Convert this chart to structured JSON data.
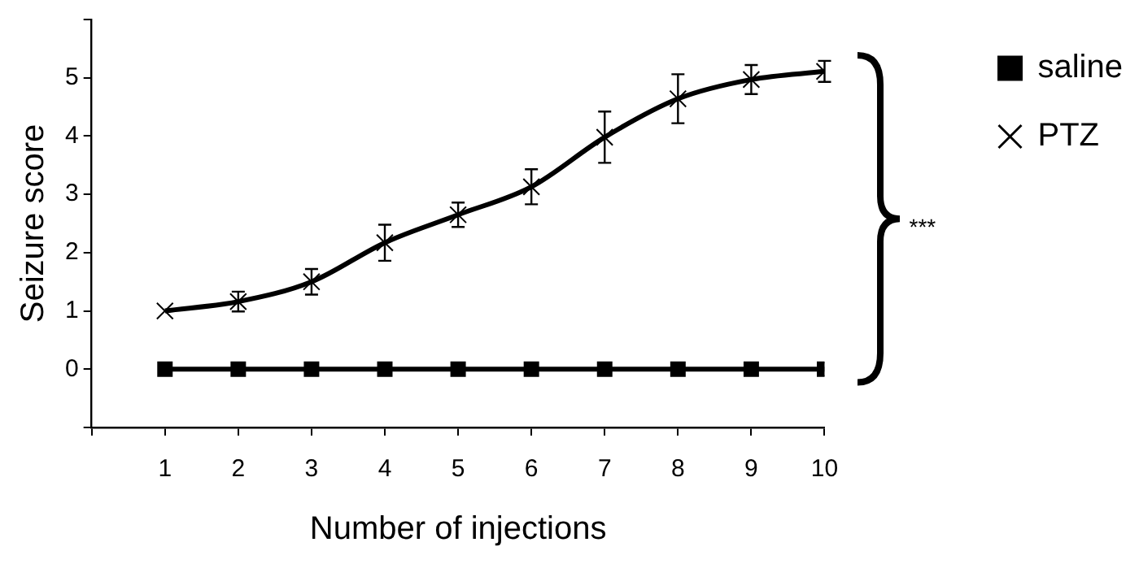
{
  "chart_data": {
    "type": "line",
    "xlabel": "Number of injections",
    "ylabel": "Seizure score",
    "x": [
      1,
      2,
      3,
      4,
      5,
      6,
      7,
      8,
      9,
      10
    ],
    "xlim": [
      0,
      10
    ],
    "xticks": [
      {
        "value": 0,
        "label": null
      },
      1,
      2,
      3,
      4,
      5,
      6,
      7,
      8,
      9,
      10
    ],
    "ylim": [
      -1,
      6
    ],
    "yticks": [
      {
        "value": -1,
        "label": null
      },
      0,
      1,
      2,
      3,
      4,
      5,
      {
        "value": 6,
        "label": null
      }
    ],
    "series": [
      {
        "name": "saline",
        "color": "#000000",
        "marker": "square",
        "values": [
          0,
          0,
          0,
          0,
          0,
          0,
          0,
          0,
          0,
          0
        ]
      },
      {
        "name": "PTZ",
        "color": "#000000",
        "marker": "cross",
        "values": [
          1,
          1.16,
          1.5,
          2.17,
          2.65,
          3.13,
          3.98,
          4.64,
          4.97,
          5.11
        ],
        "errors": [
          null,
          0.17,
          0.22,
          0.31,
          0.21,
          0.3,
          0.44,
          0.42,
          0.25,
          0.18
        ]
      }
    ],
    "legend": "right",
    "grid": false,
    "annotations": [
      "***"
    ]
  }
}
